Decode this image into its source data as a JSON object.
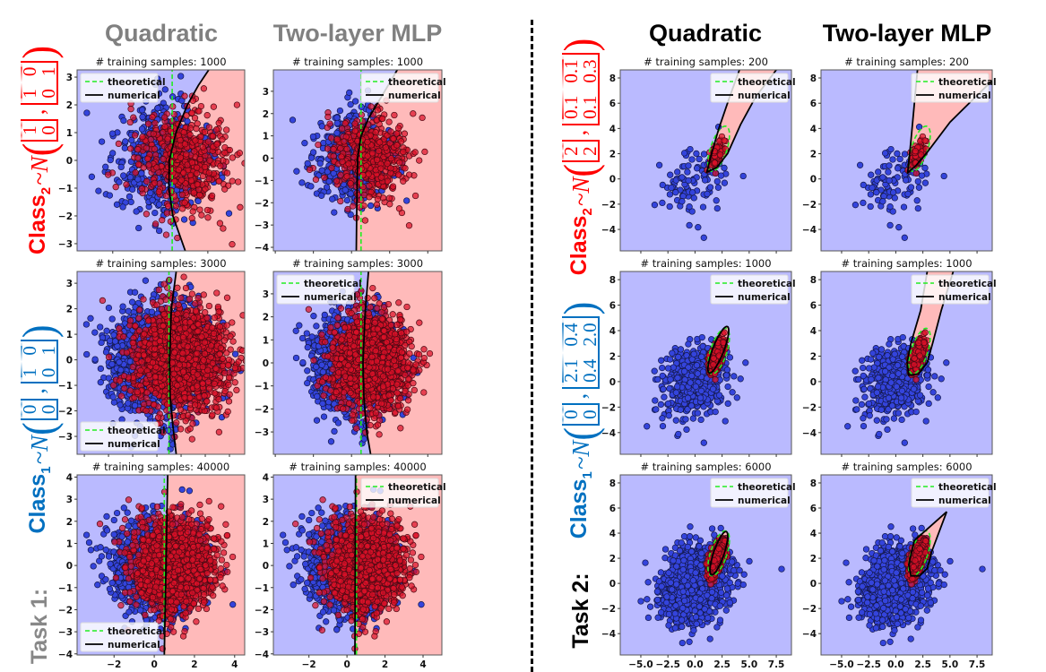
{
  "headers": {
    "task1": {
      "quadratic": "Quadratic",
      "mlp": "Two-layer MLP"
    },
    "task2": {
      "quadratic": "Quadratic",
      "mlp": "Two-layer MLP"
    }
  },
  "colors": {
    "class1": "#0070c0",
    "class2": "#ff0000",
    "task1_label": "#888888",
    "task2_label": "#000000",
    "blue_region": "#babaff",
    "red_region": "#ffbaba",
    "blue_point": "#3444dc",
    "red_point": "#dc1028",
    "theoretical": "#22ee22",
    "numerical": "#000000"
  },
  "legend": {
    "theoretical": "theoretical",
    "numerical": "numerical"
  },
  "tasks": [
    {
      "label": "Task 1:",
      "class1": {
        "prefix": "Class",
        "sub": "1",
        "dist": "~N",
        "open": "(",
        "sep": ",",
        "close": ")",
        "mean": [
          0,
          0
        ],
        "cov": [
          [
            1,
            0
          ],
          [
            0,
            1
          ]
        ]
      },
      "class2": {
        "prefix": "Class",
        "sub": "2",
        "dist": "~N",
        "open": "(",
        "sep": ",",
        "close": ")",
        "mean": [
          1,
          0
        ],
        "cov": [
          [
            1,
            0
          ],
          [
            0,
            1
          ]
        ]
      }
    },
    {
      "label": "Task 2:",
      "class1": {
        "prefix": "Class",
        "sub": "1",
        "dist": "~N",
        "open": "(",
        "sep": ",",
        "close": ")",
        "mean": [
          0,
          0
        ],
        "cov": [
          [
            2.1,
            0.4
          ],
          [
            0.4,
            2.0
          ]
        ]
      },
      "class2": {
        "prefix": "Class",
        "sub": "2",
        "dist": "~N",
        "open": "(",
        "sep": ",",
        "close": ")",
        "mean": [
          2,
          2
        ],
        "cov": [
          [
            0.1,
            0.1
          ],
          [
            0.1,
            0.3
          ]
        ]
      }
    }
  ],
  "chart_data": [
    {
      "type": "scatter",
      "task": 1,
      "model": "Quadratic",
      "title": "# training samples: 1000",
      "n_samples": 1000,
      "legend": "upper-left",
      "xlim": [
        -3.5,
        3.55
      ],
      "ylim": [
        -3.26,
        3.26
      ],
      "xticks": [
        -2,
        0,
        2
      ],
      "yticks": [
        -3,
        -2,
        -1,
        0,
        1,
        2,
        3
      ],
      "xticklabels_shown": false,
      "numerical_boundary": {
        "kind": "curve",
        "red_side": "right",
        "points": [
          [
            1.05,
            -3.26
          ],
          [
            0.53,
            -2
          ],
          [
            0.36,
            -1
          ],
          [
            0.38,
            0
          ],
          [
            0.66,
            1
          ],
          [
            1.14,
            2
          ],
          [
            1.6,
            2.7
          ],
          [
            2.04,
            3.26
          ]
        ]
      }
    },
    {
      "type": "scatter",
      "task": 1,
      "model": "Two-layer MLP",
      "title": "# training samples: 1000",
      "n_samples": 1000,
      "legend": "upper-right",
      "xlim": [
        -4.1,
        4.74
      ],
      "ylim": [
        -4.16,
        3.96
      ],
      "xticks": [
        -4,
        -2,
        0,
        2,
        4
      ],
      "yticks": [
        -4,
        -3,
        -2,
        -1,
        0,
        1,
        2,
        3
      ],
      "xticklabels_shown": false,
      "numerical_boundary": {
        "kind": "curve",
        "red_side": "right",
        "points": [
          [
            0.25,
            -4.16
          ],
          [
            0.28,
            -2
          ],
          [
            0.32,
            0
          ],
          [
            0.5,
            1
          ],
          [
            0.9,
            1.8
          ],
          [
            1.6,
            2.8
          ],
          [
            2.4,
            3.96
          ]
        ]
      }
    },
    {
      "type": "scatter",
      "task": 1,
      "model": "Quadratic",
      "title": "# training samples: 3000",
      "n_samples": 3000,
      "legend": "lower-left",
      "xlim": [
        -3.3,
        3.63
      ],
      "ylim": [
        -3.7,
        3.46
      ],
      "xticks": [
        -3,
        -2,
        -1,
        0,
        1,
        2,
        3
      ],
      "yticks": [
        -3,
        -2,
        -1,
        0,
        1,
        2,
        3
      ],
      "xticklabels_shown": false,
      "numerical_boundary": {
        "kind": "curve",
        "red_side": "right",
        "points": [
          [
            0.8,
            -3.7
          ],
          [
            0.65,
            -2.5
          ],
          [
            0.55,
            -1.5
          ],
          [
            0.52,
            0
          ],
          [
            0.6,
            2
          ],
          [
            0.8,
            3.46
          ]
        ]
      }
    },
    {
      "type": "scatter",
      "task": 1,
      "model": "Two-layer MLP",
      "title": "# training samples: 3000",
      "n_samples": 3000,
      "legend": "upper-left",
      "xlim": [
        -4.1,
        4.74
      ],
      "ylim": [
        -3.97,
        3.97
      ],
      "xticks": [
        -4,
        -2,
        0,
        2,
        4
      ],
      "yticks": [
        -3,
        -2,
        -1,
        0,
        1,
        2,
        3
      ],
      "xticklabels_shown": false,
      "numerical_boundary": {
        "kind": "curve",
        "red_side": "right",
        "points": [
          [
            1.0,
            -3.97
          ],
          [
            0.8,
            -3
          ],
          [
            0.65,
            -1.5
          ],
          [
            0.6,
            0
          ],
          [
            0.7,
            2
          ],
          [
            0.89,
            3.97
          ]
        ]
      }
    },
    {
      "type": "scatter",
      "task": 1,
      "model": "Quadratic",
      "title": "# training samples: 40000",
      "n_samples": 40000,
      "legend": "lower-left",
      "xlim": [
        -3.84,
        4.5
      ],
      "ylim": [
        -4.05,
        4.1
      ],
      "xticks": [
        -2,
        0,
        2,
        4
      ],
      "yticks": [
        -4,
        -3,
        -2,
        -1,
        0,
        1,
        2,
        3,
        4
      ],
      "xticklabels_shown": true,
      "numerical_boundary": {
        "kind": "curve",
        "red_side": "right",
        "points": [
          [
            0.5,
            -4.05
          ],
          [
            0.67,
            4.1
          ]
        ]
      }
    },
    {
      "type": "scatter",
      "task": 1,
      "model": "Two-layer MLP",
      "title": "# training samples: 40000",
      "n_samples": 40000,
      "legend": "upper-right",
      "xlim": [
        -3.87,
        4.99
      ],
      "ylim": [
        -4.05,
        4.1
      ],
      "xticks": [
        -2,
        0,
        2,
        4
      ],
      "yticks": [
        -4,
        -3,
        -2,
        -1,
        0,
        1,
        2,
        3,
        4
      ],
      "xticklabels_shown": true,
      "numerical_boundary": {
        "kind": "curve",
        "red_side": "right",
        "points": [
          [
            0.42,
            -4.05
          ],
          [
            0.45,
            4.1
          ]
        ]
      }
    },
    {
      "type": "scatter",
      "task": 2,
      "model": "Quadratic",
      "title": "# training samples: 200",
      "n_samples": 200,
      "legend": "upper-right",
      "xlim": [
        -6.9,
        8.9
      ],
      "ylim": [
        -5.7,
        8.64
      ],
      "xticks": [
        -5,
        -2.5,
        0,
        2.5,
        5,
        7.5
      ],
      "yticks": [
        -4,
        -2,
        0,
        2,
        4,
        6,
        8
      ],
      "xticklabels_shown": false,
      "numerical_boundary": {
        "kind": "polygon",
        "points": [
          [
            1.1,
            0.55
          ],
          [
            1.4,
            1.6
          ],
          [
            2.2,
            4
          ],
          [
            3.2,
            6.5
          ],
          [
            4.1,
            8.64
          ],
          [
            4.6,
            10
          ],
          [
            8.5,
            10
          ],
          [
            7.5,
            8.64
          ],
          [
            5.6,
            6.5
          ],
          [
            4.2,
            4.3
          ],
          [
            3.0,
            2.0
          ],
          [
            2.0,
            0.9
          ]
        ]
      }
    },
    {
      "type": "scatter",
      "task": 2,
      "model": "Two-layer MLP",
      "title": "# training samples: 200",
      "n_samples": 200,
      "legend": "upper-right",
      "xlim": [
        -6.9,
        8.9
      ],
      "ylim": [
        -5.7,
        8.64
      ],
      "xticks": [
        -5,
        -2.5,
        0,
        2.5,
        5,
        7.5
      ],
      "yticks": [
        -4,
        -2,
        0,
        2,
        4,
        6,
        8
      ],
      "xticklabels_shown": false,
      "numerical_boundary": {
        "kind": "polygon",
        "points": [
          [
            1.1,
            0.5
          ],
          [
            1.4,
            3
          ],
          [
            2.0,
            8.64
          ],
          [
            2.1,
            10
          ],
          [
            11,
            10
          ],
          [
            11,
            9
          ],
          [
            8.9,
            7.8
          ],
          [
            5,
            4.5
          ],
          [
            2.8,
            2.0
          ],
          [
            1.8,
            1.0
          ]
        ]
      }
    },
    {
      "type": "scatter",
      "task": 2,
      "model": "Quadratic",
      "title": "# training samples: 1000",
      "n_samples": 1000,
      "legend": "upper-right",
      "xlim": [
        -6.9,
        8.9
      ],
      "ylim": [
        -5.7,
        8.64
      ],
      "xticks": [
        -5,
        -2.5,
        0,
        2.5,
        5,
        7.5
      ],
      "yticks": [
        -4,
        -2,
        0,
        2,
        4,
        6,
        8
      ],
      "xticklabels_shown": false,
      "numerical_boundary": {
        "kind": "ellipse",
        "center": [
          2.15,
          2.5
        ],
        "semi_axes": [
          2.0,
          0.5
        ],
        "angle_deg": 65
      }
    },
    {
      "type": "scatter",
      "task": 2,
      "model": "Two-layer MLP",
      "title": "# training samples: 1000",
      "n_samples": 1000,
      "legend": "upper-right",
      "xlim": [
        -6.9,
        8.9
      ],
      "ylim": [
        -5.7,
        8.64
      ],
      "xticks": [
        -5,
        -2.5,
        0,
        2.5,
        5,
        7.5
      ],
      "yticks": [
        -4,
        -2,
        0,
        2,
        4,
        6,
        8
      ],
      "xticklabels_shown": false,
      "numerical_boundary": {
        "kind": "polygon",
        "points": [
          [
            1.2,
            0.5
          ],
          [
            1.05,
            1.5
          ],
          [
            1.4,
            3
          ],
          [
            2.3,
            5.6
          ],
          [
            2.9,
            8.64
          ],
          [
            3.1,
            10
          ],
          [
            6.0,
            10
          ],
          [
            5.3,
            8.64
          ],
          [
            4.2,
            5.6
          ],
          [
            3.4,
            3
          ],
          [
            2.9,
            1.5
          ],
          [
            2.1,
            0.6
          ]
        ]
      }
    },
    {
      "type": "scatter",
      "task": 2,
      "model": "Quadratic",
      "title": "# training samples: 6000",
      "n_samples": 6000,
      "legend": "upper-right",
      "xlim": [
        -6.9,
        8.9
      ],
      "ylim": [
        -5.7,
        8.64
      ],
      "xticks": [
        -5,
        -2.5,
        0,
        2.5,
        5,
        7.5
      ],
      "yticks": [
        -4,
        -2,
        0,
        2,
        4,
        6,
        8
      ],
      "xticklabels_shown": true,
      "numerical_boundary": {
        "kind": "ellipse",
        "center": [
          2.2,
          2.4
        ],
        "semi_axes": [
          1.85,
          0.47
        ],
        "angle_deg": 68
      }
    },
    {
      "type": "scatter",
      "task": 2,
      "model": "Two-layer MLP",
      "title": "# training samples: 6000",
      "n_samples": 6000,
      "legend": "upper-right",
      "xlim": [
        -6.9,
        8.9
      ],
      "ylim": [
        -5.7,
        8.64
      ],
      "xticks": [
        -5,
        -2.5,
        0,
        2.5,
        5,
        7.5
      ],
      "yticks": [
        -4,
        -2,
        0,
        2,
        4,
        6,
        8
      ],
      "xticklabels_shown": true,
      "numerical_boundary": {
        "kind": "polygon",
        "points": [
          [
            1.4,
            0.6
          ],
          [
            1.2,
            1.5
          ],
          [
            1.7,
            3.4
          ],
          [
            4.7,
            5.7
          ],
          [
            3.3,
            2.5
          ],
          [
            2.9,
            1.2
          ],
          [
            2.2,
            0.6
          ]
        ]
      }
    }
  ]
}
